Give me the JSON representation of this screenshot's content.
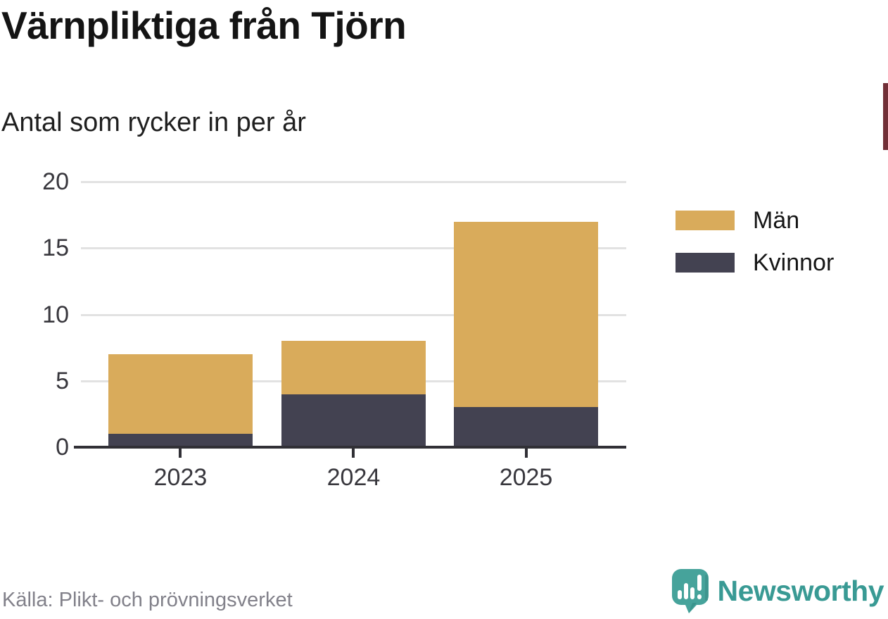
{
  "header": {
    "title": "Värnpliktiga från Tjörn",
    "subtitle": "Antal som rycker in per år"
  },
  "chart_data": {
    "type": "bar",
    "stacked": true,
    "title": "Värnpliktiga från Tjörn",
    "subtitle": "Antal som rycker in per år",
    "categories": [
      "2023",
      "2024",
      "2025"
    ],
    "series": [
      {
        "name": "Män",
        "color": "#d9ab5b",
        "values": [
          6,
          4,
          14
        ]
      },
      {
        "name": "Kvinnor",
        "color": "#434251",
        "values": [
          1,
          4,
          3
        ]
      }
    ],
    "stack_order_bottom_to_top": [
      "Kvinnor",
      "Män"
    ],
    "stacked_totals": [
      7,
      8,
      17
    ],
    "xlabel": "",
    "ylabel": "",
    "ylim": [
      0,
      20
    ],
    "y_ticks": [
      0,
      5,
      10,
      15,
      20
    ],
    "grid": "horizontal",
    "legend_position": "right"
  },
  "legend": {
    "items": [
      {
        "label": "Män",
        "color": "#d9ab5b"
      },
      {
        "label": "Kvinnor",
        "color": "#434251"
      }
    ]
  },
  "footer": {
    "source": "Källa: Plikt- och prövningsverket",
    "brand_name": "Newsworthy"
  },
  "colors": {
    "men_bar": "#d9ab5b",
    "women_bar": "#434251",
    "axis": "#313036",
    "gridline": "#e2e2e2",
    "brand_teal": "#399a94",
    "source_text": "#82818a",
    "right_edge_marker": "#722f37"
  }
}
